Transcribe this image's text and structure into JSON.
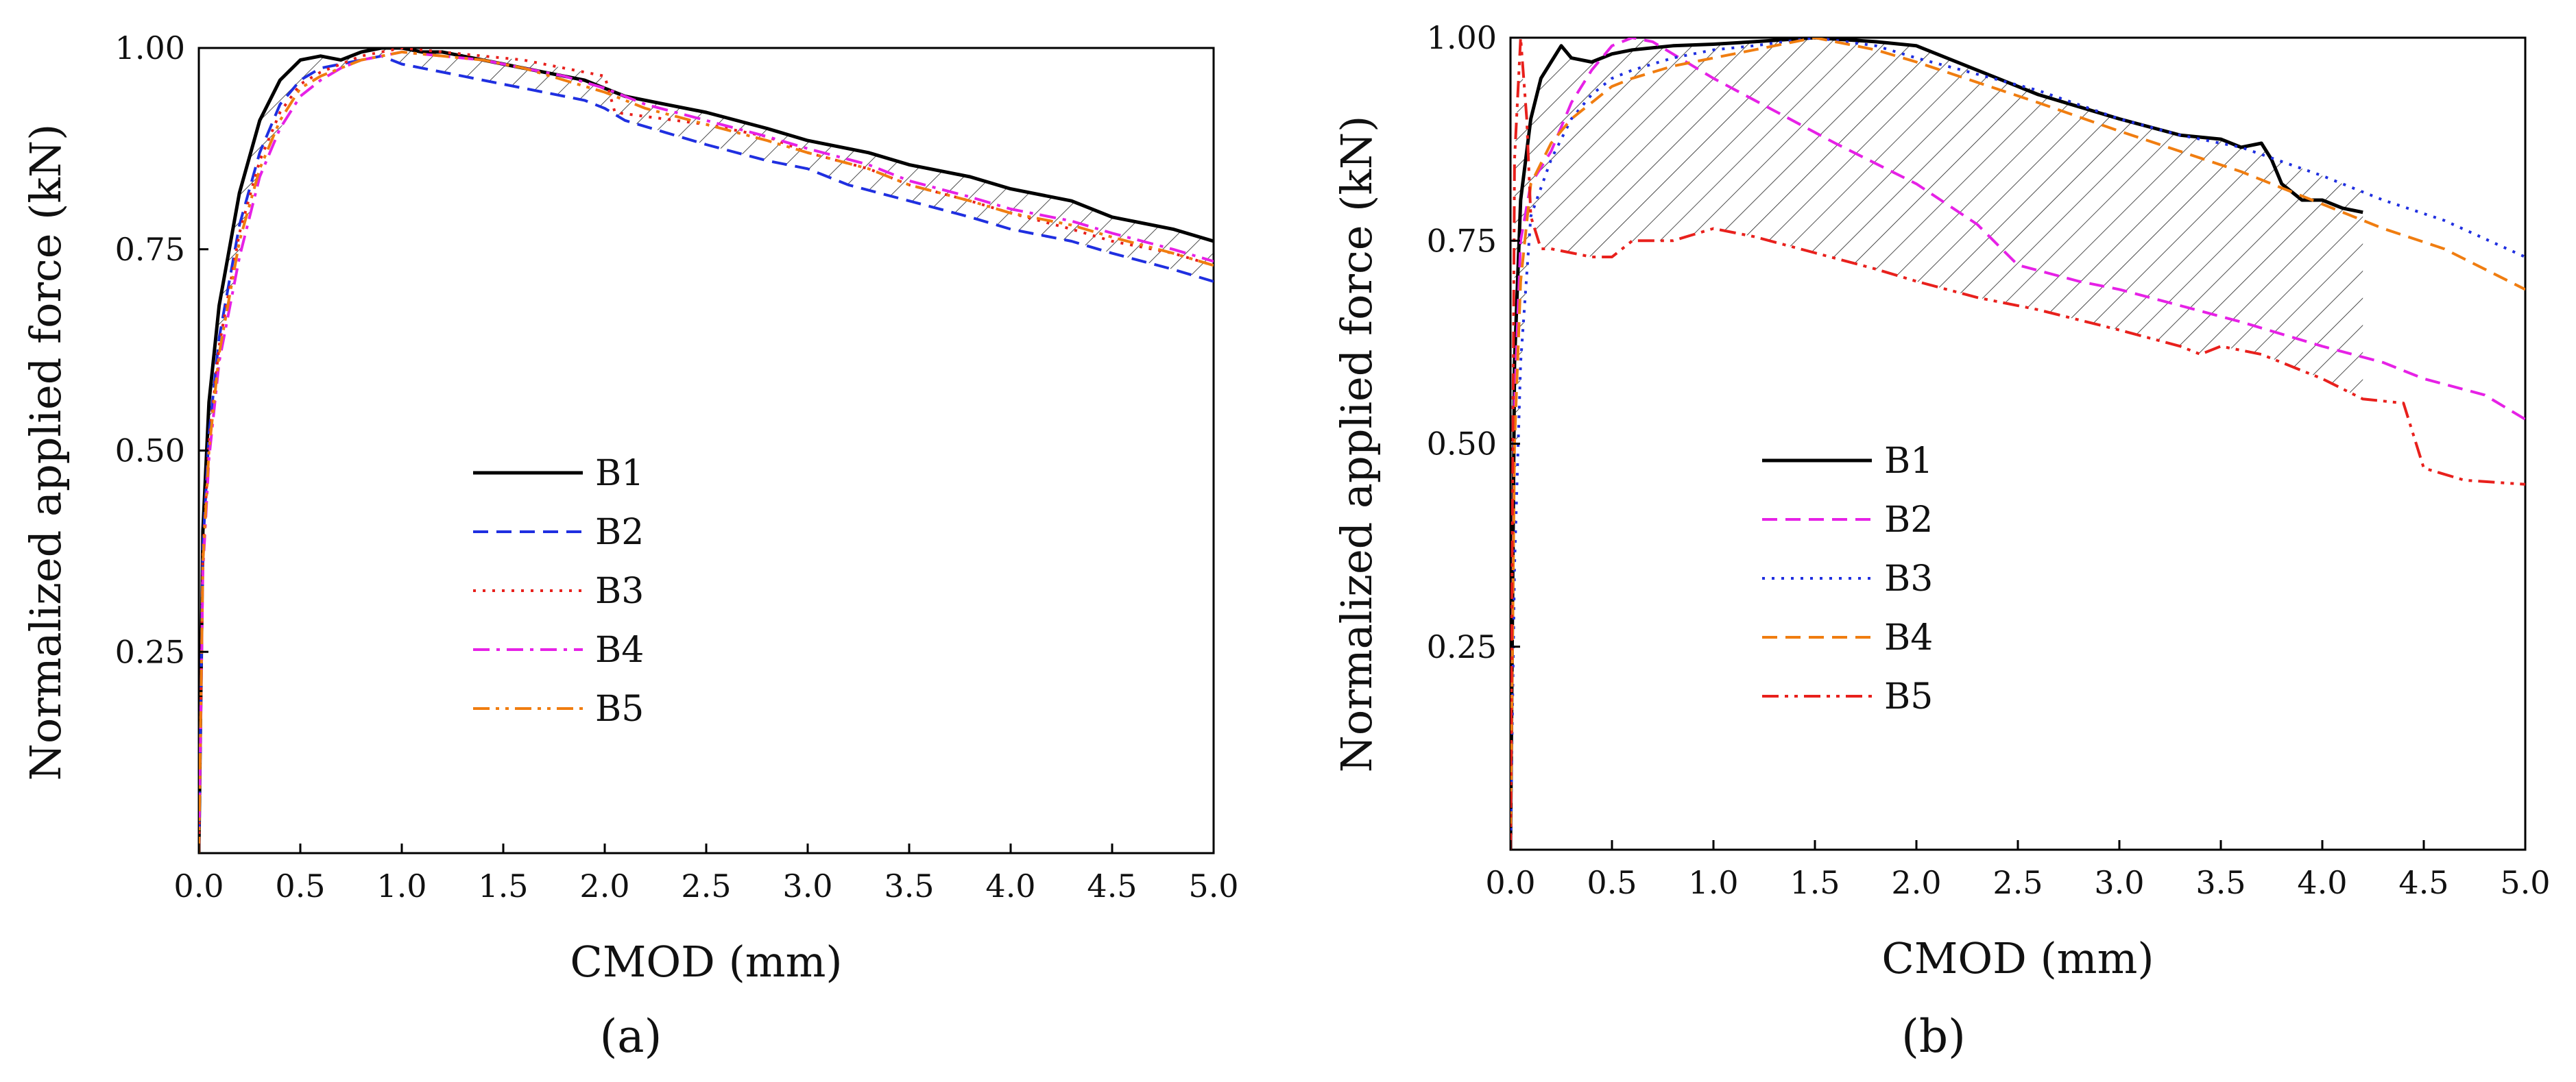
{
  "chart_data": [
    {
      "type": "line",
      "caption": "(a)",
      "xlabel": "CMOD (mm)",
      "ylabel": "Normalized applied force (kN)",
      "xlim": [
        0,
        5
      ],
      "ylim": [
        0,
        1
      ],
      "xticks": [
        "0.0",
        "0.5",
        "1.0",
        "1.5",
        "2.0",
        "2.5",
        "3.0",
        "3.5",
        "4.0",
        "4.5",
        "5.0"
      ],
      "yticks": [
        "0.25",
        "0.50",
        "0.75",
        "1.00"
      ],
      "legend": "center-left",
      "hatched_envelope": true,
      "series": [
        {
          "name": "B1",
          "color": "#000000",
          "style": "solid",
          "x": [
            0,
            0.02,
            0.05,
            0.1,
            0.2,
            0.3,
            0.4,
            0.5,
            0.6,
            0.7,
            0.8,
            0.9,
            1.0,
            1.1,
            1.2,
            1.3,
            1.4,
            1.5,
            1.7,
            1.9,
            2.0,
            2.1,
            2.3,
            2.5,
            2.8,
            3.0,
            3.3,
            3.5,
            3.8,
            4.0,
            4.3,
            4.5,
            4.8,
            5.0
          ],
          "y": [
            0,
            0.4,
            0.56,
            0.68,
            0.82,
            0.91,
            0.96,
            0.985,
            0.99,
            0.985,
            0.995,
            1.0,
            1.0,
            0.995,
            0.995,
            0.99,
            0.985,
            0.98,
            0.97,
            0.96,
            0.95,
            0.94,
            0.93,
            0.92,
            0.9,
            0.885,
            0.87,
            0.855,
            0.84,
            0.825,
            0.81,
            0.79,
            0.775,
            0.76
          ]
        },
        {
          "name": "B2",
          "color": "#1f2fe0",
          "style": "dashed",
          "x": [
            0,
            0.02,
            0.05,
            0.1,
            0.2,
            0.3,
            0.4,
            0.5,
            0.6,
            0.7,
            0.8,
            0.9,
            1.0,
            1.1,
            1.3,
            1.5,
            1.7,
            1.9,
            2.0,
            2.1,
            2.3,
            2.5,
            2.8,
            3.0,
            3.2,
            3.5,
            3.8,
            4.0,
            4.3,
            4.5,
            4.8,
            5.0
          ],
          "y": [
            0,
            0.38,
            0.52,
            0.64,
            0.78,
            0.87,
            0.93,
            0.96,
            0.975,
            0.98,
            0.985,
            0.99,
            0.98,
            0.975,
            0.965,
            0.955,
            0.945,
            0.935,
            0.925,
            0.91,
            0.895,
            0.88,
            0.86,
            0.85,
            0.83,
            0.81,
            0.79,
            0.775,
            0.76,
            0.745,
            0.725,
            0.71
          ]
        },
        {
          "name": "B3",
          "color": "#e8201c",
          "style": "dotted",
          "x": [
            0,
            0.02,
            0.05,
            0.1,
            0.2,
            0.3,
            0.4,
            0.5,
            0.6,
            0.7,
            0.8,
            0.9,
            1.0,
            1.2,
            1.4,
            1.6,
            1.8,
            2.0,
            2.05,
            2.2,
            2.5,
            2.8,
            3.0,
            3.3,
            3.5,
            3.8,
            4.0,
            4.3,
            4.5,
            4.8,
            5.0
          ],
          "y": [
            0,
            0.37,
            0.51,
            0.63,
            0.77,
            0.86,
            0.92,
            0.955,
            0.97,
            0.98,
            0.99,
            0.995,
            1.0,
            0.995,
            0.99,
            0.985,
            0.975,
            0.965,
            0.92,
            0.915,
            0.905,
            0.89,
            0.87,
            0.85,
            0.83,
            0.81,
            0.795,
            0.775,
            0.76,
            0.745,
            0.73
          ]
        },
        {
          "name": "B4",
          "color": "#e621e6",
          "style": "dashdot",
          "x": [
            0,
            0.02,
            0.05,
            0.1,
            0.2,
            0.3,
            0.4,
            0.5,
            0.6,
            0.7,
            0.8,
            0.9,
            1.0,
            1.2,
            1.4,
            1.6,
            1.8,
            2.0,
            2.2,
            2.5,
            2.8,
            3.0,
            3.3,
            3.5,
            3.8,
            4.0,
            4.3,
            4.5,
            4.8,
            5.0
          ],
          "y": [
            0,
            0.35,
            0.49,
            0.61,
            0.74,
            0.84,
            0.9,
            0.94,
            0.96,
            0.975,
            0.985,
            0.99,
            0.995,
            0.99,
            0.985,
            0.975,
            0.965,
            0.95,
            0.93,
            0.91,
            0.89,
            0.875,
            0.855,
            0.835,
            0.815,
            0.8,
            0.785,
            0.77,
            0.75,
            0.735
          ]
        },
        {
          "name": "B5",
          "color": "#f07d10",
          "style": "dashdotdot",
          "x": [
            0,
            0.02,
            0.05,
            0.1,
            0.2,
            0.3,
            0.4,
            0.5,
            0.6,
            0.7,
            0.8,
            0.9,
            1.0,
            1.2,
            1.4,
            1.6,
            1.8,
            2.0,
            2.2,
            2.5,
            2.8,
            3.0,
            3.3,
            3.5,
            3.8,
            4.0,
            4.3,
            4.5,
            4.8,
            5.0
          ],
          "y": [
            0,
            0.36,
            0.5,
            0.62,
            0.76,
            0.85,
            0.91,
            0.95,
            0.965,
            0.975,
            0.985,
            0.99,
            0.995,
            0.99,
            0.985,
            0.975,
            0.96,
            0.945,
            0.925,
            0.905,
            0.885,
            0.87,
            0.85,
            0.83,
            0.81,
            0.795,
            0.78,
            0.765,
            0.745,
            0.73
          ]
        }
      ]
    },
    {
      "type": "line",
      "caption": "(b)",
      "xlabel": "CMOD (mm)",
      "ylabel": "Normalized applied force (kN)",
      "xlim": [
        0,
        5
      ],
      "ylim": [
        0,
        1
      ],
      "xticks": [
        "0.0",
        "0.5",
        "1.0",
        "1.5",
        "2.0",
        "2.5",
        "3.0",
        "3.5",
        "4.0",
        "4.5",
        "5.0"
      ],
      "yticks": [
        "0.25",
        "0.50",
        "0.75",
        "1.00"
      ],
      "legend": "center-left",
      "hatched_envelope": true,
      "series": [
        {
          "name": "B1",
          "color": "#000000",
          "style": "solid",
          "x": [
            0,
            0.02,
            0.05,
            0.1,
            0.15,
            0.2,
            0.25,
            0.3,
            0.4,
            0.5,
            0.6,
            0.8,
            1.0,
            1.2,
            1.5,
            1.8,
            2.0,
            2.3,
            2.6,
            3.0,
            3.3,
            3.5,
            3.6,
            3.7,
            3.75,
            3.8,
            3.9,
            4.0,
            4.1,
            4.2
          ],
          "y": [
            0,
            0.6,
            0.8,
            0.9,
            0.95,
            0.97,
            0.99,
            0.975,
            0.97,
            0.98,
            0.985,
            0.99,
            0.992,
            0.995,
            1.0,
            0.995,
            0.99,
            0.96,
            0.93,
            0.9,
            0.88,
            0.875,
            0.865,
            0.87,
            0.85,
            0.82,
            0.8,
            0.8,
            0.79,
            0.785
          ]
        },
        {
          "name": "B2",
          "color": "#e621e6",
          "style": "dashed",
          "x": [
            0,
            0.02,
            0.05,
            0.1,
            0.2,
            0.3,
            0.4,
            0.5,
            0.6,
            0.7,
            0.8,
            1.0,
            1.3,
            1.6,
            2.0,
            2.3,
            2.5,
            2.8,
            3.0,
            3.3,
            3.6,
            4.0,
            4.3,
            4.5,
            4.8,
            5.0
          ],
          "y": [
            0,
            0.55,
            0.75,
            0.82,
            0.86,
            0.92,
            0.96,
            0.99,
            1.0,
            0.995,
            0.98,
            0.95,
            0.91,
            0.87,
            0.82,
            0.77,
            0.72,
            0.7,
            0.69,
            0.67,
            0.65,
            0.62,
            0.6,
            0.58,
            0.56,
            0.53
          ]
        },
        {
          "name": "B3",
          "color": "#1f2fe0",
          "style": "dotted",
          "x": [
            0,
            0.02,
            0.05,
            0.1,
            0.2,
            0.3,
            0.4,
            0.5,
            0.6,
            0.8,
            1.0,
            1.2,
            1.5,
            1.8,
            2.0,
            2.3,
            2.6,
            3.0,
            3.3,
            3.6,
            4.0,
            4.3,
            4.6,
            5.0
          ],
          "y": [
            0,
            0.35,
            0.6,
            0.78,
            0.85,
            0.9,
            0.93,
            0.95,
            0.96,
            0.975,
            0.985,
            0.99,
            1.0,
            0.99,
            0.975,
            0.955,
            0.935,
            0.9,
            0.88,
            0.865,
            0.83,
            0.8,
            0.775,
            0.73
          ]
        },
        {
          "name": "B4",
          "color": "#f07d10",
          "style": "dashed",
          "x": [
            0,
            0.02,
            0.05,
            0.1,
            0.2,
            0.3,
            0.4,
            0.5,
            0.6,
            0.8,
            1.0,
            1.2,
            1.5,
            1.8,
            2.0,
            2.3,
            2.6,
            3.0,
            3.3,
            3.6,
            4.0,
            4.3,
            4.6,
            5.0
          ],
          "y": [
            0,
            0.5,
            0.7,
            0.82,
            0.87,
            0.9,
            0.92,
            0.94,
            0.95,
            0.965,
            0.975,
            0.985,
            1.0,
            0.985,
            0.97,
            0.945,
            0.92,
            0.885,
            0.86,
            0.835,
            0.795,
            0.765,
            0.74,
            0.69
          ]
        },
        {
          "name": "B5",
          "color": "#e8201c",
          "style": "dashdotdot",
          "x": [
            0,
            0.02,
            0.05,
            0.08,
            0.1,
            0.15,
            0.2,
            0.3,
            0.4,
            0.5,
            0.6,
            0.8,
            1.0,
            1.2,
            1.5,
            1.8,
            2.0,
            2.3,
            2.6,
            3.0,
            3.3,
            3.4,
            3.5,
            3.7,
            3.8,
            3.9,
            4.0,
            4.2,
            4.4,
            4.5,
            4.7,
            5.0
          ],
          "y": [
            0,
            0.85,
            1.0,
            0.9,
            0.78,
            0.74,
            0.74,
            0.735,
            0.73,
            0.73,
            0.75,
            0.75,
            0.765,
            0.755,
            0.735,
            0.715,
            0.7,
            0.68,
            0.665,
            0.64,
            0.62,
            0.61,
            0.62,
            0.61,
            0.6,
            0.59,
            0.58,
            0.555,
            0.55,
            0.47,
            0.455,
            0.45
          ]
        }
      ]
    }
  ]
}
